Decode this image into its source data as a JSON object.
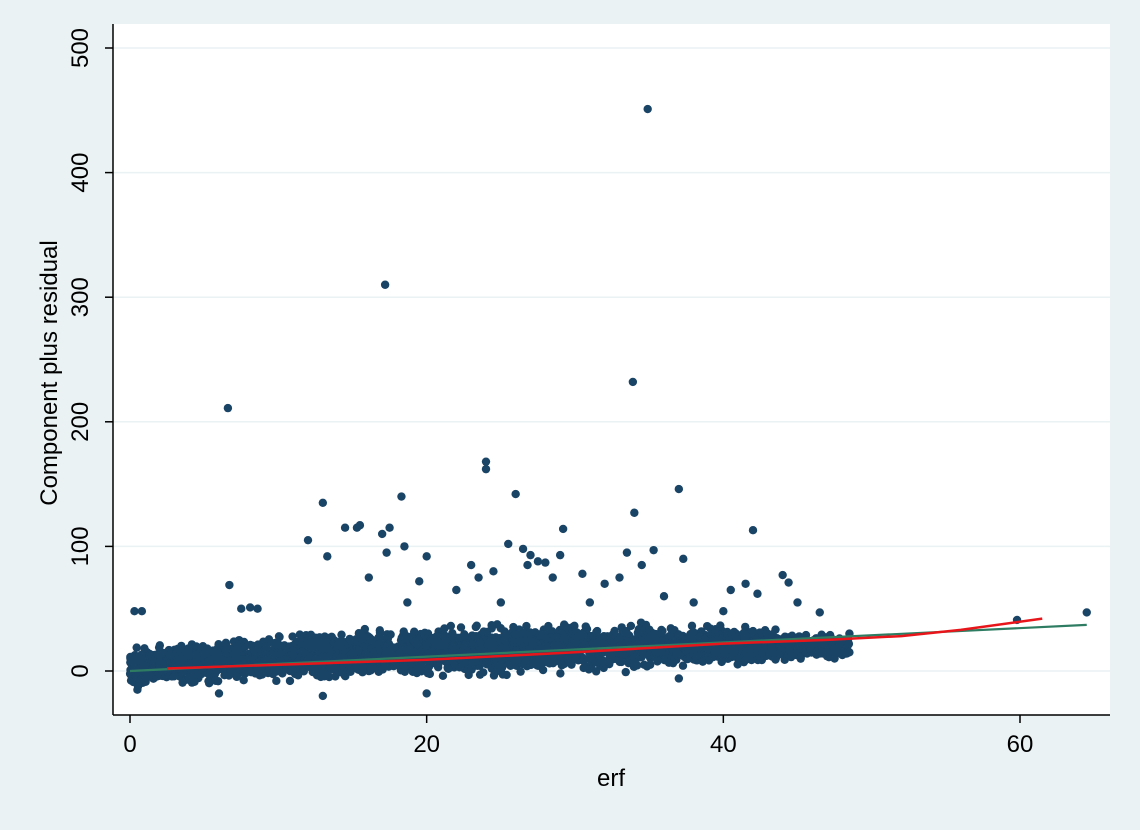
{
  "chart_data": {
    "type": "scatter",
    "title": "",
    "xlabel": "erf",
    "ylabel": "Component plus residual",
    "xlim": [
      -1.5,
      65.5
    ],
    "ylim": [
      -35,
      515
    ],
    "xticks": [
      0,
      20,
      40,
      60
    ],
    "yticks": [
      0,
      100,
      200,
      300,
      400,
      500
    ],
    "grid": {
      "horizontal": true,
      "vertical": false
    },
    "colors": {
      "background": "#eaf2f3",
      "plot_background": "#ffffff",
      "points": "#1a4466",
      "linear_fit": "#2e7d62",
      "smooth_fit": "#e8161a",
      "grid": "#eaf2f3"
    },
    "dense_band": {
      "description_free": true,
      "x_range": [
        0,
        48.5
      ],
      "lower": [
        [
          0,
          -15
        ],
        [
          10,
          -12
        ],
        [
          20,
          -8
        ],
        [
          30,
          -4
        ],
        [
          40,
          2
        ],
        [
          48,
          8
        ]
      ],
      "upper": [
        [
          0,
          25
        ],
        [
          10,
          40
        ],
        [
          20,
          45
        ],
        [
          30,
          48
        ],
        [
          40,
          45
        ],
        [
          48,
          32
        ]
      ],
      "center": [
        [
          0,
          2
        ],
        [
          10,
          8
        ],
        [
          20,
          13
        ],
        [
          30,
          19
        ],
        [
          40,
          24
        ],
        [
          48,
          22
        ]
      ]
    },
    "series": [
      {
        "points": [
          [
            0.3,
            48
          ],
          [
            0.8,
            48
          ],
          [
            6.7,
            69
          ],
          [
            7.5,
            50
          ],
          [
            8.1,
            51
          ],
          [
            8.6,
            50
          ],
          [
            12,
            105
          ],
          [
            13,
            135
          ],
          [
            13.3,
            92
          ],
          [
            14.5,
            115
          ],
          [
            15.3,
            115
          ],
          [
            15.5,
            117
          ],
          [
            16.1,
            75
          ],
          [
            17,
            110
          ],
          [
            17.3,
            95
          ],
          [
            17.5,
            115
          ],
          [
            18.3,
            140
          ],
          [
            18.5,
            100
          ],
          [
            18.7,
            55
          ],
          [
            19.5,
            72
          ],
          [
            20,
            92
          ],
          [
            22,
            65
          ],
          [
            23,
            85
          ],
          [
            23.5,
            75
          ],
          [
            24,
            168
          ],
          [
            24,
            162
          ],
          [
            24.5,
            80
          ],
          [
            25,
            55
          ],
          [
            25.5,
            102
          ],
          [
            26,
            142
          ],
          [
            26.5,
            98
          ],
          [
            26.8,
            85
          ],
          [
            27,
            93
          ],
          [
            27.5,
            88
          ],
          [
            28,
            87
          ],
          [
            28.5,
            75
          ],
          [
            29,
            93
          ],
          [
            29.2,
            114
          ],
          [
            30.5,
            78
          ],
          [
            31,
            55
          ],
          [
            32,
            70
          ],
          [
            33,
            75
          ],
          [
            33.5,
            95
          ],
          [
            34,
            127
          ],
          [
            34.5,
            85
          ],
          [
            35.3,
            97
          ],
          [
            36,
            60
          ],
          [
            37,
            146
          ],
          [
            37.3,
            90
          ],
          [
            38,
            55
          ],
          [
            40,
            48
          ],
          [
            40.5,
            65
          ],
          [
            41.5,
            70
          ],
          [
            42,
            113
          ],
          [
            42.3,
            62
          ],
          [
            44,
            77
          ],
          [
            44.4,
            71
          ],
          [
            45,
            55
          ],
          [
            46.5,
            47
          ],
          [
            48.5,
            30
          ],
          [
            48.5,
            15
          ],
          [
            47.5,
            10
          ],
          [
            37,
            -6
          ],
          [
            20,
            -18
          ],
          [
            13,
            -20
          ],
          [
            6,
            -18
          ],
          [
            0.5,
            -15
          ],
          [
            59.8,
            41
          ],
          [
            64.5,
            47
          ],
          [
            6.6,
            211
          ],
          [
            17.2,
            310
          ],
          [
            33.9,
            232
          ],
          [
            34.9,
            451
          ]
        ]
      }
    ],
    "fit_lines": {
      "linear": [
        [
          0,
          0
        ],
        [
          64.5,
          37
        ]
      ],
      "smooth": [
        [
          2.5,
          2
        ],
        [
          10,
          5
        ],
        [
          20,
          9
        ],
        [
          30,
          15
        ],
        [
          40,
          22
        ],
        [
          47,
          25
        ],
        [
          52,
          28
        ],
        [
          56,
          33
        ],
        [
          61.5,
          42
        ]
      ]
    }
  }
}
